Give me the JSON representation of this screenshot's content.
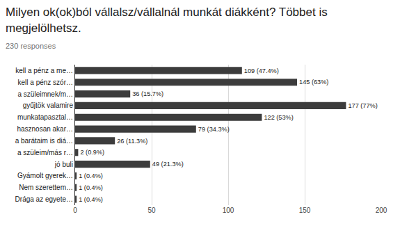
{
  "chart_data": {
    "type": "bar",
    "orientation": "horizontal",
    "title": "Milyen ok(ok)ból vállalsz/vállalnál munkát diákként? Többet is megjelölhetsz.",
    "subtitle": "230 responses",
    "categories": [
      "kell a pénz a me…",
      "kell a pénz szór…",
      "a szüleimnek/m…",
      "gyűjtök valamire",
      "munkatapasztal…",
      "hasznosan akar…",
      "a barátaim is diá…",
      "a szüleim/más r…",
      "jó buli",
      "Gyámolt gyerek…",
      "Nem szerettem…",
      "Drága az egyete…"
    ],
    "values": [
      109,
      145,
      36,
      177,
      122,
      79,
      26,
      2,
      49,
      1,
      1,
      1
    ],
    "value_labels": [
      "109 (47.4%)",
      "145 (63%)",
      "36 (15.7%)",
      "177 (77%)",
      "122 (53%)",
      "79 (34.3%)",
      "26 (11.3%)",
      "2 (0.9%)",
      "49 (21.3%)",
      "1 (0.4%)",
      "1 (0.4%)",
      "1 (0.4%)"
    ],
    "data_labels": true,
    "color": "#3c3c3c",
    "xlim": [
      0,
      200
    ],
    "xticks": [
      0,
      50,
      100,
      150,
      200
    ],
    "grid": true
  }
}
